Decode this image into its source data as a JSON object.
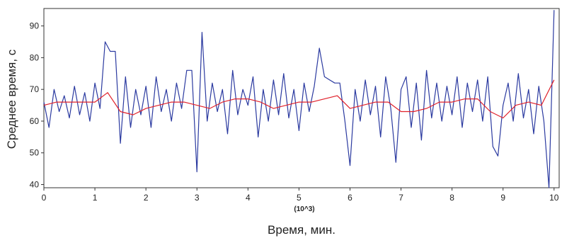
{
  "chart_data": {
    "type": "line",
    "x_label": "Время, мин.",
    "y_label": "Среднее время, с",
    "x_scale_note": "(10^3)",
    "xlim": [
      0,
      10.1
    ],
    "ylim": [
      39,
      95.5
    ],
    "xticks": [
      0,
      1,
      2,
      3,
      4,
      5,
      6,
      7,
      8,
      9,
      10
    ],
    "yticks": [
      40,
      50,
      60,
      70,
      80,
      90
    ],
    "series": [
      {
        "color": "#2b3aa0",
        "x": [
          0,
          0.1,
          0.2,
          0.3,
          0.4,
          0.5,
          0.6,
          0.7,
          0.8,
          0.9,
          1,
          1.1,
          1.2,
          1.3,
          1.4,
          1.5,
          1.6,
          1.7,
          1.8,
          1.9,
          2,
          2.1,
          2.2,
          2.3,
          2.4,
          2.5,
          2.6,
          2.7,
          2.8,
          2.9,
          3,
          3.1,
          3.2,
          3.3,
          3.4,
          3.5,
          3.6,
          3.7,
          3.8,
          3.9,
          4,
          4.1,
          4.2,
          4.3,
          4.4,
          4.5,
          4.6,
          4.7,
          4.8,
          4.9,
          5,
          5.1,
          5.2,
          5.3,
          5.4,
          5.5,
          5.6,
          5.7,
          5.8,
          5.9,
          6,
          6.1,
          6.2,
          6.3,
          6.4,
          6.5,
          6.6,
          6.7,
          6.8,
          6.9,
          7,
          7.1,
          7.2,
          7.3,
          7.4,
          7.5,
          7.6,
          7.7,
          7.8,
          7.9,
          8,
          8.1,
          8.2,
          8.3,
          8.4,
          8.5,
          8.6,
          8.7,
          8.8,
          8.9,
          9,
          9.1,
          9.2,
          9.3,
          9.4,
          9.5,
          9.6,
          9.7,
          9.8,
          9.9,
          10
        ],
        "values": [
          66,
          58,
          70,
          63,
          68,
          61,
          71,
          62,
          69,
          60,
          72,
          64,
          85,
          82,
          82,
          53,
          74,
          58,
          70,
          62,
          71,
          58,
          74,
          63,
          70,
          60,
          72,
          64,
          76,
          76,
          44,
          88,
          60,
          72,
          63,
          70,
          56,
          76,
          62,
          70,
          65,
          74,
          55,
          70,
          60,
          73,
          62,
          75,
          61,
          70,
          57,
          72,
          63,
          71,
          83,
          74,
          73,
          72,
          72,
          60,
          46,
          70,
          60,
          73,
          62,
          71,
          55,
          74,
          64,
          47,
          70,
          74,
          58,
          72,
          54,
          76,
          61,
          72,
          60,
          71,
          62,
          74,
          58,
          72,
          63,
          73,
          60,
          74,
          52,
          49,
          65,
          72,
          60,
          75,
          61,
          70,
          56,
          71,
          60,
          39,
          95
        ]
      },
      {
        "color": "#e0202a",
        "x": [
          0,
          0.25,
          0.5,
          0.75,
          1,
          1.25,
          1.5,
          1.75,
          2,
          2.25,
          2.5,
          2.75,
          3,
          3.25,
          3.5,
          3.75,
          4,
          4.25,
          4.5,
          4.75,
          5,
          5.25,
          5.5,
          5.75,
          6,
          6.25,
          6.5,
          6.75,
          7,
          7.25,
          7.5,
          7.75,
          8,
          8.25,
          8.5,
          8.75,
          9,
          9.25,
          9.5,
          9.75,
          10
        ],
        "values": [
          65,
          66,
          66,
          66,
          66,
          69,
          63,
          62,
          64,
          65,
          66,
          66,
          65,
          64,
          66,
          67,
          67,
          66,
          64,
          65,
          66,
          66,
          67,
          68,
          64,
          65,
          66,
          66,
          63,
          63,
          64,
          66,
          66,
          67,
          67,
          63,
          61,
          65,
          66,
          65,
          73
        ]
      }
    ]
  }
}
